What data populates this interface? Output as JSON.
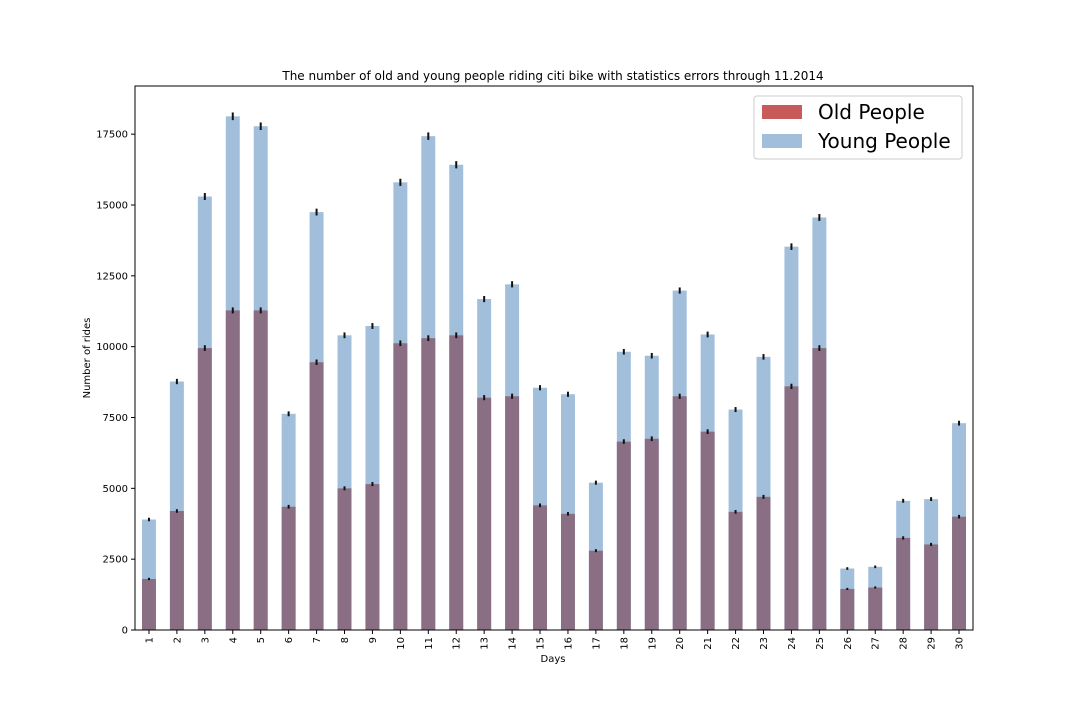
{
  "chart_data": {
    "type": "bar",
    "stacking": "overlay",
    "title": "The number of old and young people riding citi bike with statistics errors through 11.2014",
    "xlabel": "Days",
    "ylabel": "Number of rides",
    "ylim": [
      0,
      19200
    ],
    "yticks": [
      0,
      2500,
      5000,
      7500,
      10000,
      12500,
      15000,
      17500
    ],
    "categories": [
      "1",
      "2",
      "3",
      "4",
      "5",
      "6",
      "7",
      "8",
      "9",
      "10",
      "11",
      "12",
      "13",
      "14",
      "15",
      "16",
      "17",
      "18",
      "19",
      "20",
      "21",
      "22",
      "23",
      "24",
      "25",
      "26",
      "27",
      "28",
      "29",
      "30"
    ],
    "legend_position": "top-right",
    "grid": false,
    "series": [
      {
        "name": "Old People",
        "color": "#c85a5a",
        "bar_color": "#8a6f84",
        "values": [
          1800,
          4200,
          9950,
          11280,
          11280,
          4350,
          9450,
          5000,
          5150,
          10120,
          10300,
          10400,
          8200,
          8250,
          4400,
          4100,
          2800,
          6650,
          6750,
          8250,
          7000,
          4170,
          4700,
          8600,
          9950,
          1450,
          1500,
          3250,
          3020,
          4000
        ],
        "errors": [
          42,
          64,
          100,
          106,
          106,
          66,
          97,
          71,
          72,
          100,
          101,
          102,
          90,
          91,
          66,
          64,
          53,
          82,
          82,
          91,
          84,
          65,
          69,
          93,
          100,
          38,
          39,
          57,
          55,
          63
        ]
      },
      {
        "name": "Young People",
        "color": "#a1bfdb",
        "values": [
          3900,
          8770,
          15300,
          18130,
          17780,
          7630,
          14750,
          10400,
          10730,
          15800,
          17430,
          16420,
          11680,
          12200,
          8550,
          8320,
          5200,
          9820,
          9680,
          11980,
          10430,
          7780,
          9640,
          13530,
          14560,
          2170,
          2230,
          4560,
          4620,
          7300
        ],
        "errors": [
          62,
          94,
          124,
          135,
          133,
          87,
          121,
          102,
          104,
          126,
          132,
          128,
          108,
          110,
          92,
          91,
          72,
          99,
          98,
          109,
          102,
          88,
          98,
          116,
          121,
          47,
          47,
          68,
          68,
          85
        ]
      }
    ]
  }
}
